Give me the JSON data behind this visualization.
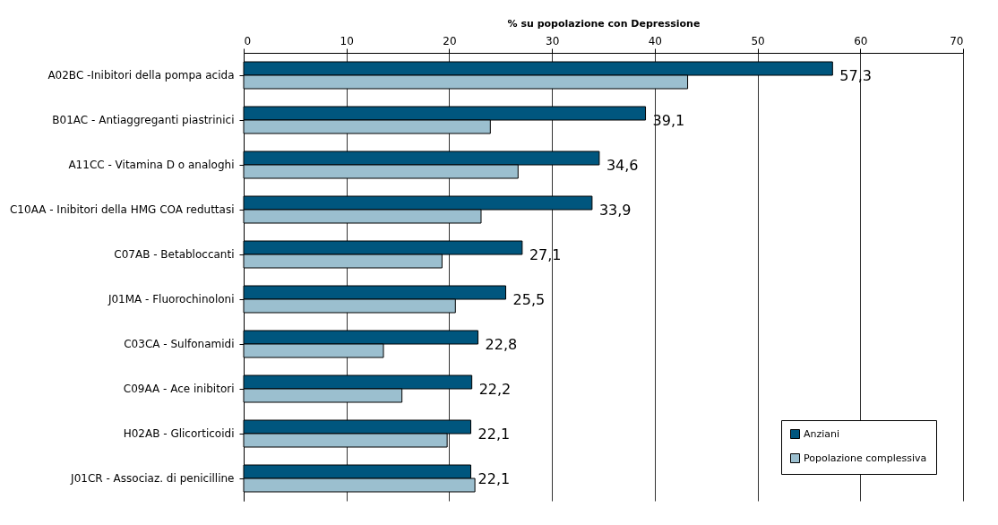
{
  "chart_data": {
    "type": "bar",
    "orientation": "horizontal",
    "xlabel": "% su popolazione con Depressione",
    "categories": [
      "A02BC -Inibitori della pompa acida",
      "B01AC - Antiaggreganti piastrinici",
      "A11CC - Vitamina D o analoghi",
      "C10AA - Inibitori della HMG COA reduttasi",
      "C07AB - Betabloccanti",
      "J01MA - Fluorochinoloni",
      "C03CA - Sulfonamidi",
      "C09AA - Ace inibitori",
      "H02AB - Glicorticoidi",
      "J01CR - Associaz. di penicilline"
    ],
    "series": [
      {
        "name": "Anziani",
        "color": "#00567e",
        "values": [
          57.3,
          39.1,
          34.6,
          33.9,
          27.1,
          25.5,
          22.8,
          22.2,
          22.1,
          22.1
        ],
        "value_labels": [
          "57,3",
          "39,1",
          "34,6",
          "33,9",
          "27,1",
          "25,5",
          "22,8",
          "22,2",
          "22,1",
          "22,1"
        ]
      },
      {
        "name": "Popolazione complessiva",
        "color": "#9bbfcf",
        "values": [
          43.2,
          24.0,
          26.7,
          23.1,
          19.3,
          20.6,
          13.6,
          15.4,
          19.8,
          22.5
        ]
      }
    ],
    "xlim": [
      0,
      70
    ],
    "xticks": [
      0,
      10,
      20,
      30,
      40,
      50,
      60,
      70
    ],
    "grid": "x",
    "legend": "bottom right"
  }
}
